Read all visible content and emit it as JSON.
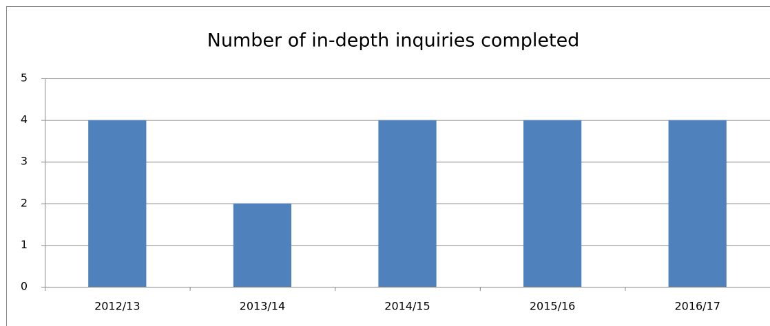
{
  "chart_data": {
    "type": "bar",
    "title": "Number of in-depth inquiries completed",
    "categories": [
      "2012/13",
      "2013/14",
      "2014/15",
      "2015/16",
      "2016/17"
    ],
    "values": [
      4,
      2,
      4,
      4,
      4
    ],
    "color": "#4f81bd",
    "ylim": [
      0,
      5
    ],
    "yticks": [
      0,
      1,
      2,
      3,
      4,
      5
    ],
    "grid": true
  }
}
